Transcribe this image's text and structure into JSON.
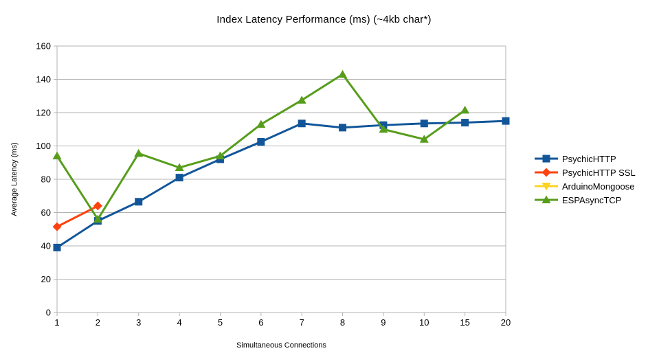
{
  "chart_data": {
    "type": "line",
    "title": "Index Latency Performance (ms) (~4kb char*)",
    "xlabel": "Simultaneous Connections",
    "ylabel": "Average Latency (ms)",
    "categories": [
      "1",
      "2",
      "3",
      "4",
      "5",
      "6",
      "7",
      "8",
      "9",
      "10",
      "15",
      "20"
    ],
    "ylim": [
      0,
      160
    ],
    "ytick_step": 20,
    "grid": true,
    "grid_color": "#b3b3b3",
    "tick_label_color": "#000000",
    "legend_position": "right",
    "series": [
      {
        "name": "PsychicHTTP",
        "color": "#125699",
        "marker": "square",
        "values": [
          39,
          55,
          66.5,
          81,
          92,
          102.5,
          113.5,
          111,
          112.5,
          113.5,
          114,
          115
        ]
      },
      {
        "name": "PsychicHTTP SSL",
        "color": "#FF420E",
        "marker": "diamond",
        "values": [
          51.5,
          64,
          null,
          null,
          null,
          null,
          null,
          null,
          null,
          null,
          null,
          null
        ]
      },
      {
        "name": "ArduinoMongoose",
        "color": "#FFD320",
        "marker": "triangle-down",
        "values": [
          null,
          null,
          null,
          null,
          null,
          null,
          null,
          null,
          null,
          null,
          null,
          null
        ]
      },
      {
        "name": "ESPAsyncTCP",
        "color": "#579D1C",
        "marker": "triangle-up",
        "values": [
          94,
          56,
          95.5,
          87,
          94,
          113,
          127.5,
          143,
          110,
          104,
          121.5,
          null
        ]
      }
    ]
  }
}
